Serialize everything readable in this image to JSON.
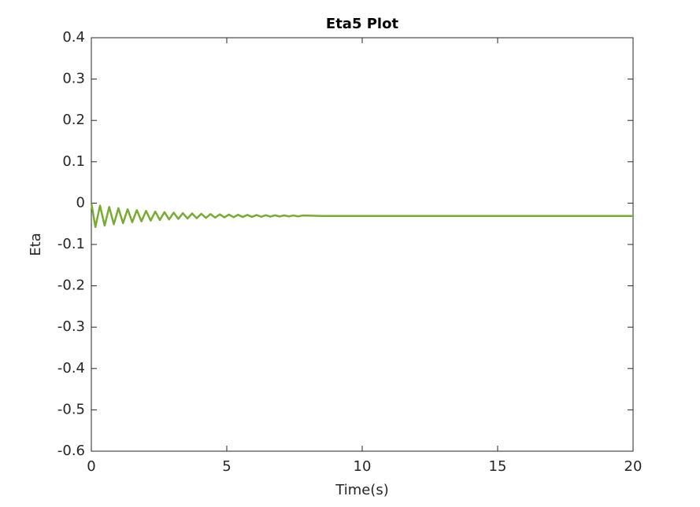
{
  "chart_data": {
    "type": "line",
    "title": "Eta5 Plot",
    "x_label": "Time(s)",
    "y_label": "Eta",
    "x": [
      0,
      0.15,
      0.32,
      0.49,
      0.66,
      0.83,
      1.0,
      1.17,
      1.34,
      1.51,
      1.68,
      1.85,
      2.02,
      2.19,
      2.36,
      2.53,
      2.7,
      2.87,
      3.04,
      3.21,
      3.38,
      3.55,
      3.72,
      3.89,
      4.06,
      4.23,
      4.4,
      4.57,
      4.74,
      4.91,
      5.08,
      5.25,
      5.42,
      5.59,
      5.76,
      5.93,
      6.1,
      6.27,
      6.44,
      6.61,
      6.78,
      6.95,
      7.12,
      7.29,
      7.46,
      7.63,
      7.8,
      8.5,
      10,
      15,
      20
    ],
    "series": [
      {
        "name": "Eta5",
        "color": "#77ac30",
        "values": [
          0,
          -0.058,
          -0.0059,
          -0.0544,
          -0.0093,
          -0.0512,
          -0.0122,
          -0.0485,
          -0.0147,
          -0.0461,
          -0.0169,
          -0.0441,
          -0.0188,
          -0.0423,
          -0.0205,
          -0.0408,
          -0.0219,
          -0.0395,
          -0.0231,
          -0.0383,
          -0.0242,
          -0.0373,
          -0.0251,
          -0.0365,
          -0.0259,
          -0.0357,
          -0.0266,
          -0.0351,
          -0.0272,
          -0.0345,
          -0.0277,
          -0.0341,
          -0.0282,
          -0.0336,
          -0.0286,
          -0.0333,
          -0.0289,
          -0.033,
          -0.0292,
          -0.0327,
          -0.0294,
          -0.0324,
          -0.0297,
          -0.0322,
          -0.0299,
          -0.032,
          -0.03,
          -0.031,
          -0.031,
          -0.031,
          -0.031
        ]
      }
    ],
    "xlim": [
      0,
      20
    ],
    "xticks": [
      0,
      5,
      10,
      15,
      20
    ],
    "ylim": [
      -0.6,
      0.4
    ],
    "yticks": [
      -0.6,
      -0.5,
      -0.4,
      -0.3,
      -0.2,
      -0.1,
      0,
      0.1,
      0.2,
      0.3,
      0.4
    ],
    "grid": false
  }
}
